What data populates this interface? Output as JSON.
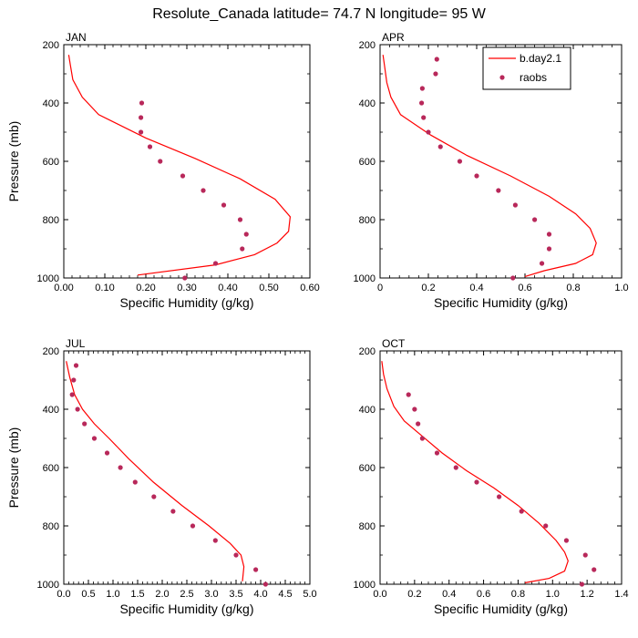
{
  "title": "Resolute_Canada  latitude= 74.7 N longitude= 95 W",
  "legend": {
    "model_label": "b.day2.1",
    "obs_label": "raobs"
  },
  "colors": {
    "model": "#ff0000",
    "obs": "#b8285a",
    "axis": "#000000"
  },
  "chart_data": [
    {
      "type": "line",
      "panel": "JAN",
      "title": "JAN",
      "xlabel": "Specific Humidity (g/kg)",
      "ylabel": "Pressure (mb)",
      "xlim": [
        0,
        0.6
      ],
      "ylim": [
        1000,
        200
      ],
      "xticks": [
        "0.00",
        "0.10",
        "0.20",
        "0.30",
        "0.40",
        "0.50",
        "0.60"
      ],
      "yticks": [
        "200",
        "400",
        "600",
        "800",
        "1000"
      ],
      "series": [
        {
          "name": "b.day2.1",
          "kind": "line",
          "x": [
            0.012,
            0.016,
            0.022,
            0.045,
            0.085,
            0.2,
            0.32,
            0.43,
            0.515,
            0.552,
            0.548,
            0.52,
            0.465,
            0.37,
            0.18
          ],
          "y": [
            235,
            270,
            320,
            380,
            440,
            520,
            590,
            660,
            730,
            790,
            840,
            880,
            920,
            955,
            990
          ]
        },
        {
          "name": "raobs",
          "kind": "scatter",
          "x": [
            0.19,
            0.188,
            0.188,
            0.21,
            0.235,
            0.29,
            0.34,
            0.39,
            0.43,
            0.445,
            0.435,
            0.37,
            0.295
          ],
          "y": [
            400,
            450,
            500,
            550,
            600,
            650,
            700,
            750,
            800,
            850,
            900,
            950,
            1000
          ]
        }
      ]
    },
    {
      "type": "line",
      "panel": "APR",
      "title": "APR",
      "xlabel": "Specific Humidity (g/kg)",
      "ylabel": "",
      "xlim": [
        0,
        1.0
      ],
      "ylim": [
        1000,
        200
      ],
      "xticks": [
        "0",
        "0.2",
        "0.4",
        "0.6",
        "0.8",
        "1.0"
      ],
      "yticks": [
        "200",
        "400",
        "600",
        "800",
        "1000"
      ],
      "series": [
        {
          "name": "b.day2.1",
          "kind": "line",
          "x": [
            0.012,
            0.018,
            0.028,
            0.045,
            0.085,
            0.21,
            0.36,
            0.54,
            0.7,
            0.81,
            0.87,
            0.895,
            0.88,
            0.81,
            0.68,
            0.6
          ],
          "y": [
            235,
            270,
            330,
            380,
            440,
            510,
            580,
            650,
            720,
            780,
            830,
            880,
            920,
            950,
            975,
            995
          ]
        },
        {
          "name": "raobs",
          "kind": "scatter",
          "x": [
            0.235,
            0.23,
            0.175,
            0.172,
            0.18,
            0.2,
            0.25,
            0.33,
            0.4,
            0.49,
            0.56,
            0.64,
            0.7,
            0.7,
            0.67,
            0.55
          ],
          "y": [
            250,
            300,
            350,
            400,
            450,
            500,
            550,
            600,
            650,
            700,
            750,
            800,
            850,
            900,
            950,
            1000
          ]
        }
      ]
    },
    {
      "type": "line",
      "panel": "JUL",
      "title": "JUL",
      "xlabel": "Specific Humidity (g/kg)",
      "ylabel": "Pressure (mb)",
      "xlim": [
        0,
        5.0
      ],
      "ylim": [
        1000,
        200
      ],
      "xticks": [
        "0.0",
        "0.5",
        "1.0",
        "1.5",
        "2.0",
        "2.5",
        "3.0",
        "3.5",
        "4.0",
        "4.5",
        "5.0"
      ],
      "yticks": [
        "200",
        "400",
        "600",
        "800",
        "1000"
      ],
      "series": [
        {
          "name": "b.day2.1",
          "kind": "line",
          "x": [
            0.05,
            0.12,
            0.22,
            0.38,
            0.62,
            0.92,
            1.32,
            1.82,
            2.4,
            2.95,
            3.38,
            3.6,
            3.66,
            3.63
          ],
          "y": [
            235,
            290,
            350,
            400,
            450,
            500,
            570,
            650,
            730,
            800,
            860,
            900,
            940,
            990
          ]
        },
        {
          "name": "raobs",
          "kind": "scatter",
          "x": [
            0.25,
            0.2,
            0.17,
            0.28,
            0.42,
            0.62,
            0.88,
            1.15,
            1.45,
            1.83,
            2.22,
            2.62,
            3.08,
            3.5,
            3.9,
            4.1
          ],
          "y": [
            250,
            300,
            350,
            400,
            450,
            500,
            550,
            600,
            650,
            700,
            750,
            800,
            850,
            900,
            950,
            1000
          ]
        }
      ]
    },
    {
      "type": "line",
      "panel": "OCT",
      "title": "OCT",
      "xlabel": "Specific Humidity (g/kg)",
      "ylabel": "",
      "xlim": [
        0,
        1.4
      ],
      "ylim": [
        1000,
        200
      ],
      "xticks": [
        "0.0",
        "0.2",
        "0.4",
        "0.6",
        "0.8",
        "1.0",
        "1.2",
        "1.4"
      ],
      "yticks": [
        "200",
        "400",
        "600",
        "800",
        "1000"
      ],
      "series": [
        {
          "name": "b.day2.1",
          "kind": "line",
          "x": [
            0.01,
            0.02,
            0.04,
            0.08,
            0.14,
            0.24,
            0.36,
            0.5,
            0.66,
            0.8,
            0.92,
            1.02,
            1.07,
            1.09,
            1.07,
            0.98,
            0.84
          ],
          "y": [
            235,
            280,
            330,
            390,
            440,
            490,
            550,
            610,
            670,
            730,
            790,
            850,
            890,
            920,
            955,
            980,
            995
          ]
        },
        {
          "name": "raobs",
          "kind": "scatter",
          "x": [
            0.165,
            0.2,
            0.22,
            0.245,
            0.33,
            0.44,
            0.56,
            0.69,
            0.82,
            0.96,
            1.08,
            1.19,
            1.24,
            1.17
          ],
          "y": [
            350,
            400,
            450,
            500,
            550,
            600,
            650,
            700,
            750,
            800,
            850,
            900,
            950,
            1000
          ]
        }
      ]
    }
  ]
}
